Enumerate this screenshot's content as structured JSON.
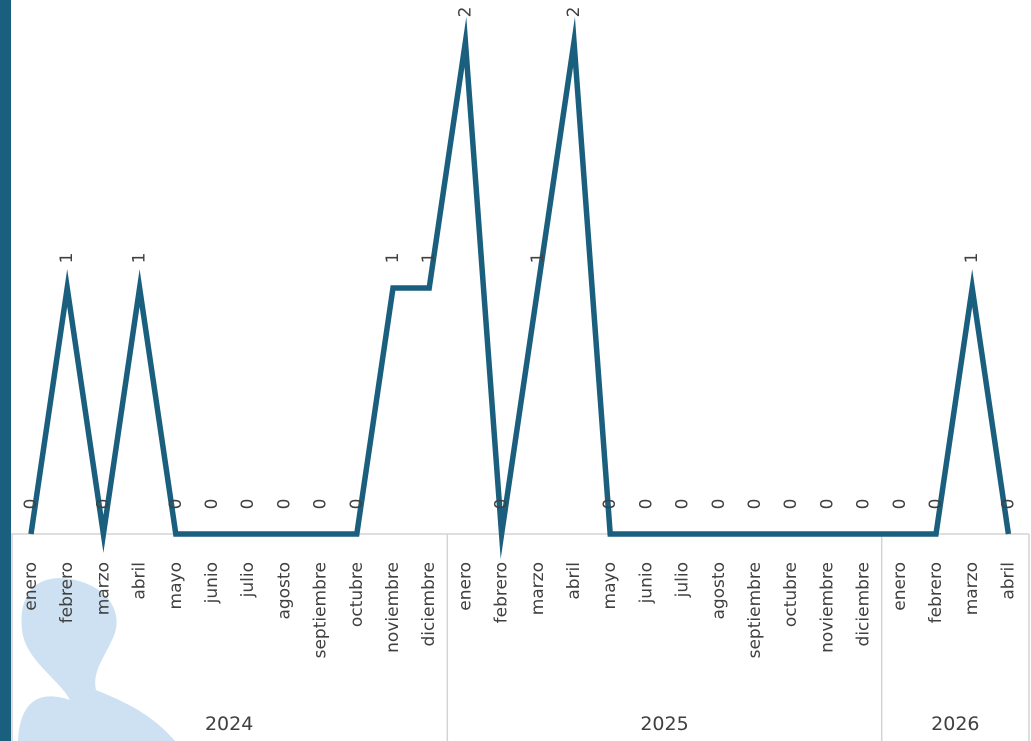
{
  "colors": {
    "line": "#1a5f7e",
    "left_bar": "#1a5f7e",
    "axis": "#d4d4d4",
    "text": "#404040",
    "watermark": "#bcd7ee"
  },
  "chart_data": {
    "type": "line",
    "title": "",
    "xlabel": "",
    "ylabel": "",
    "ylim": [
      0,
      2
    ],
    "grid": false,
    "legend": "none",
    "data_labels": true,
    "years": [
      {
        "year": "2024",
        "months": [
          "enero",
          "febrero",
          "marzo",
          "abril",
          "mayo",
          "junio",
          "julio",
          "agosto",
          "septiembre",
          "octubre",
          "noviembre",
          "diciembre"
        ]
      },
      {
        "year": "2025",
        "months": [
          "enero",
          "febrero",
          "marzo",
          "abril",
          "mayo",
          "junio",
          "julio",
          "agosto",
          "septiembre",
          "octubre",
          "noviembre",
          "diciembre"
        ]
      },
      {
        "year": "2026",
        "months": [
          "enero",
          "febrero",
          "marzo",
          "abril"
        ]
      }
    ],
    "series": [
      {
        "values": [
          0,
          1,
          0,
          1,
          0,
          0,
          0,
          0,
          0,
          0,
          1,
          1,
          2,
          0,
          1,
          2,
          0,
          0,
          0,
          0,
          0,
          0,
          0,
          0,
          0,
          0,
          1,
          0
        ]
      }
    ]
  }
}
